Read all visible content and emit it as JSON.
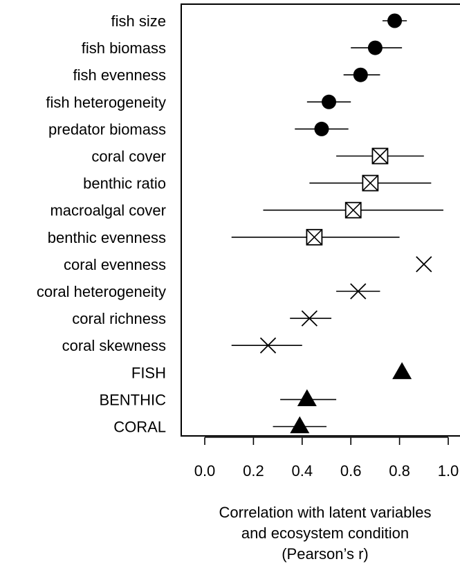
{
  "chart_data": {
    "type": "scatter",
    "orientation": "horizontal-dot-plot-with-error-bars",
    "xlabel_lines": [
      "Correlation with latent variables",
      "and ecosystem condition",
      "(Pearson’s r)"
    ],
    "xlim": [
      -0.05,
      1.05
    ],
    "xticks": [
      "0.0",
      "0.2",
      "0.4",
      "0.6",
      "0.8",
      "1.0"
    ],
    "xtick_values": [
      0.0,
      0.2,
      0.4,
      0.6,
      0.8,
      1.0
    ],
    "groups": [
      {
        "marker": "circle",
        "marker_style": "filled black circle"
      },
      {
        "marker": "boxed-x",
        "marker_style": "open square with X"
      },
      {
        "marker": "x",
        "marker_style": "cross"
      },
      {
        "marker": "triangle",
        "marker_style": "filled black triangle"
      }
    ],
    "points": [
      {
        "label": "fish size",
        "marker": "circle",
        "r": 0.78,
        "lo": 0.73,
        "hi": 0.83
      },
      {
        "label": "fish biomass",
        "marker": "circle",
        "r": 0.7,
        "lo": 0.6,
        "hi": 0.81
      },
      {
        "label": "fish evenness",
        "marker": "circle",
        "r": 0.64,
        "lo": 0.57,
        "hi": 0.72
      },
      {
        "label": "fish heterogeneity",
        "marker": "circle",
        "r": 0.51,
        "lo": 0.42,
        "hi": 0.6
      },
      {
        "label": "predator biomass",
        "marker": "circle",
        "r": 0.48,
        "lo": 0.37,
        "hi": 0.59
      },
      {
        "label": "coral cover",
        "marker": "boxed-x",
        "r": 0.72,
        "lo": 0.54,
        "hi": 0.9
      },
      {
        "label": "benthic ratio",
        "marker": "boxed-x",
        "r": 0.68,
        "lo": 0.43,
        "hi": 0.93
      },
      {
        "label": "macroalgal cover",
        "marker": "boxed-x",
        "r": 0.61,
        "lo": 0.24,
        "hi": 0.98
      },
      {
        "label": "benthic evenness",
        "marker": "boxed-x",
        "r": 0.45,
        "lo": 0.11,
        "hi": 0.8
      },
      {
        "label": "coral evenness",
        "marker": "x",
        "r": 0.9,
        "lo": 0.9,
        "hi": 0.9
      },
      {
        "label": "coral heterogeneity",
        "marker": "x",
        "r": 0.63,
        "lo": 0.54,
        "hi": 0.72
      },
      {
        "label": "coral richness",
        "marker": "x",
        "r": 0.43,
        "lo": 0.35,
        "hi": 0.52
      },
      {
        "label": "coral skewness",
        "marker": "x",
        "r": 0.26,
        "lo": 0.11,
        "hi": 0.4
      },
      {
        "label": "FISH",
        "marker": "triangle",
        "r": 0.81,
        "lo": 0.81,
        "hi": 0.81
      },
      {
        "label": "BENTHIC",
        "marker": "triangle",
        "r": 0.42,
        "lo": 0.31,
        "hi": 0.54
      },
      {
        "label": "CORAL",
        "marker": "triangle",
        "r": 0.39,
        "lo": 0.28,
        "hi": 0.5
      }
    ],
    "grid": false,
    "legend": "none"
  }
}
